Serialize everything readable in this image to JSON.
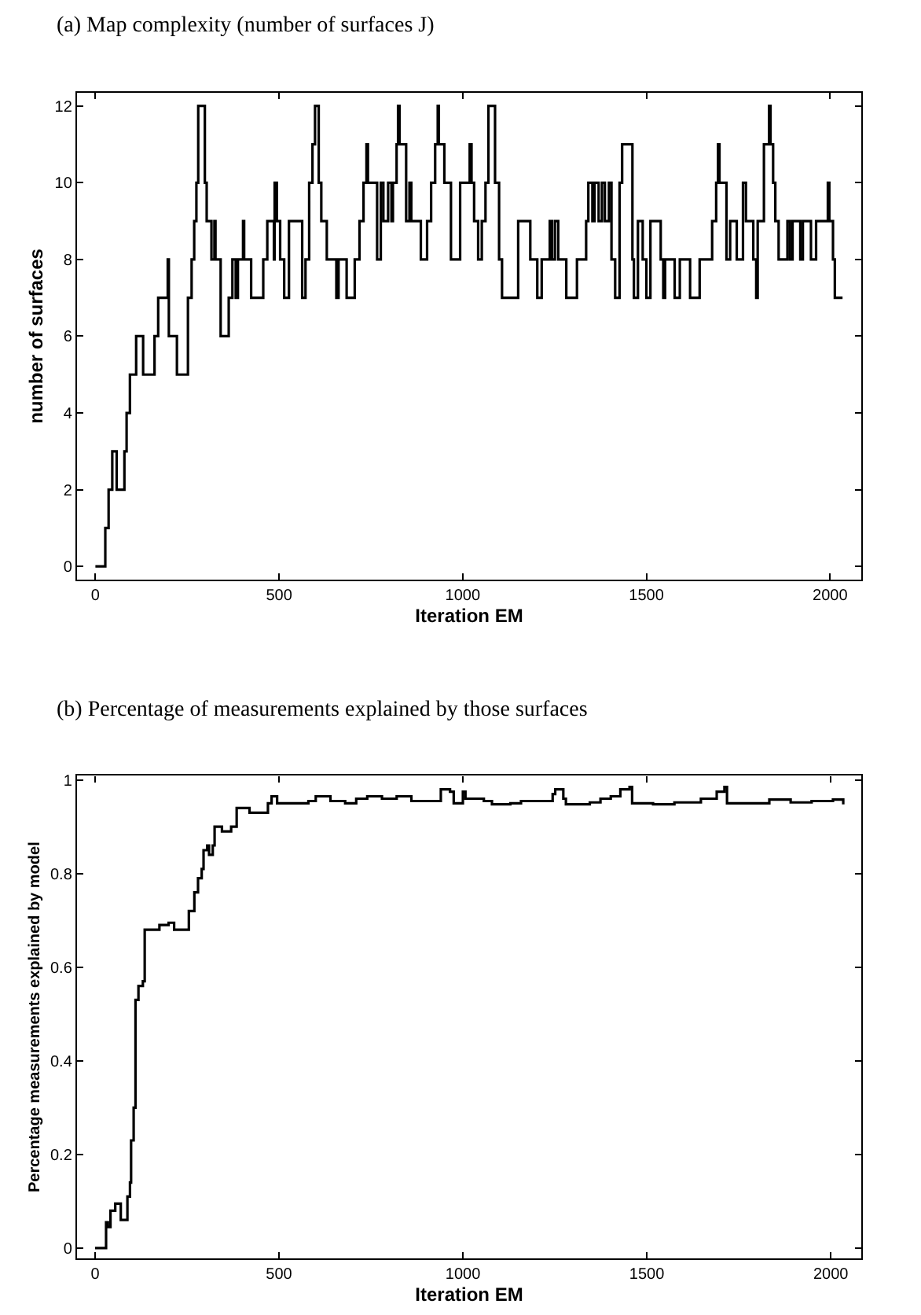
{
  "chart_data": [
    {
      "type": "step",
      "title": "(a) Map complexity (number of surfaces J)",
      "xlabel": "Iteration EM",
      "ylabel": "number of surfaces",
      "color": "#000000",
      "xlim": [
        -50,
        2085
      ],
      "ylim": [
        -0.35,
        12.35
      ],
      "xticks": [
        0,
        500,
        1000,
        1500,
        2000
      ],
      "yticks": [
        0,
        2,
        4,
        6,
        8,
        10,
        12
      ],
      "x": [
        0,
        27,
        36,
        46,
        58,
        79,
        85,
        94,
        111,
        130,
        161,
        171,
        197,
        200,
        222,
        252,
        262,
        269,
        275,
        280,
        298,
        303,
        316,
        324,
        327,
        341,
        363,
        373,
        382,
        388,
        402,
        405,
        424,
        457,
        468,
        486,
        488,
        494,
        503,
        514,
        527,
        563,
        572,
        582,
        591,
        598,
        608,
        615,
        630,
        656,
        662,
        684,
        706,
        719,
        730,
        738,
        742,
        767,
        777,
        784,
        797,
        806,
        810,
        820,
        824,
        828,
        846,
        855,
        860,
        886,
        903,
        914,
        925,
        932,
        935,
        950,
        968,
        993,
        1019,
        1024,
        1031,
        1042,
        1052,
        1062,
        1070,
        1088,
        1099,
        1107,
        1151,
        1184,
        1203,
        1215,
        1237,
        1243,
        1251,
        1260,
        1282,
        1311,
        1336,
        1342,
        1353,
        1359,
        1370,
        1379,
        1387,
        1398,
        1405,
        1415,
        1427,
        1434,
        1462,
        1466,
        1477,
        1490,
        1500,
        1511,
        1539,
        1546,
        1551,
        1577,
        1591,
        1619,
        1645,
        1679,
        1690,
        1695,
        1699,
        1718,
        1728,
        1746,
        1763,
        1771,
        1791,
        1799,
        1803,
        1820,
        1834,
        1838,
        1845,
        1851,
        1860,
        1884,
        1891,
        1898,
        1919,
        1926,
        1948,
        1962,
        1994,
        1998,
        2008,
        2013,
        2034
      ],
      "values": [
        0,
        1,
        2,
        3,
        2,
        3,
        4,
        5,
        6,
        5,
        6,
        7,
        8,
        6,
        5,
        7,
        8,
        9,
        10,
        12,
        10,
        9,
        8,
        9,
        8,
        6,
        7,
        8,
        7,
        8,
        9,
        8,
        7,
        8,
        9,
        8,
        10,
        9,
        8,
        7,
        9,
        7,
        8,
        10,
        11,
        12,
        10,
        9,
        8,
        7,
        8,
        7,
        8,
        9,
        10,
        11,
        10,
        8,
        10,
        9,
        10,
        9,
        10,
        11,
        12,
        11,
        9,
        10,
        9,
        8,
        9,
        10,
        11,
        12,
        11,
        10,
        8,
        10,
        11,
        10,
        9,
        8,
        9,
        10,
        12,
        10,
        8,
        7,
        9,
        8,
        7,
        8,
        9,
        8,
        9,
        8,
        7,
        8,
        9,
        10,
        9,
        10,
        9,
        10,
        9,
        10,
        8,
        7,
        10,
        11,
        8,
        7,
        9,
        8,
        7,
        9,
        8,
        7,
        8,
        7,
        8,
        7,
        8,
        9,
        10,
        11,
        10,
        8,
        9,
        8,
        10,
        9,
        8,
        7,
        9,
        11,
        12,
        11,
        10,
        9,
        8,
        9,
        8,
        9,
        8,
        9,
        8,
        9,
        10,
        9,
        8,
        7,
        7
      ]
    },
    {
      "type": "step",
      "title": "(b) Percentage of measurements explained by those surfaces",
      "xlabel": "Iteration EM",
      "ylabel": "Percentage measurements explained by model",
      "color": "#000000",
      "xlim": [
        -49,
        2083
      ],
      "ylim": [
        -0.022,
        1.009
      ],
      "xticks": [
        0,
        500,
        1000,
        1500,
        2000
      ],
      "yticks": [
        0,
        0.2,
        0.4,
        0.6,
        0.8,
        1
      ],
      "x": [
        0,
        30,
        35,
        42,
        55,
        70,
        85,
        88,
        95,
        98,
        105,
        110,
        118,
        130,
        135,
        160,
        175,
        200,
        215,
        250,
        255,
        270,
        280,
        290,
        295,
        305,
        310,
        320,
        325,
        345,
        370,
        385,
        420,
        470,
        480,
        495,
        540,
        580,
        600,
        640,
        680,
        710,
        740,
        780,
        820,
        860,
        920,
        940,
        965,
        975,
        1000,
        1007,
        1057,
        1079,
        1129,
        1158,
        1230,
        1244,
        1251,
        1273,
        1280,
        1345,
        1374,
        1402,
        1428,
        1453,
        1460,
        1517,
        1575,
        1647,
        1690,
        1711,
        1718,
        1761,
        1833,
        1891,
        1948,
        2006,
        2034
      ],
      "values": [
        0,
        0.055,
        0.045,
        0.08,
        0.095,
        0.06,
        0.06,
        0.11,
        0.14,
        0.23,
        0.3,
        0.53,
        0.56,
        0.57,
        0.68,
        0.68,
        0.69,
        0.695,
        0.68,
        0.68,
        0.72,
        0.76,
        0.79,
        0.81,
        0.85,
        0.86,
        0.84,
        0.86,
        0.9,
        0.89,
        0.9,
        0.94,
        0.93,
        0.95,
        0.965,
        0.95,
        0.95,
        0.955,
        0.965,
        0.955,
        0.95,
        0.96,
        0.965,
        0.96,
        0.965,
        0.955,
        0.955,
        0.98,
        0.975,
        0.95,
        0.975,
        0.96,
        0.955,
        0.948,
        0.95,
        0.955,
        0.955,
        0.97,
        0.98,
        0.96,
        0.948,
        0.952,
        0.96,
        0.965,
        0.98,
        0.985,
        0.95,
        0.948,
        0.952,
        0.96,
        0.975,
        0.985,
        0.95,
        0.95,
        0.958,
        0.952,
        0.955,
        0.958,
        0.948
      ]
    }
  ]
}
